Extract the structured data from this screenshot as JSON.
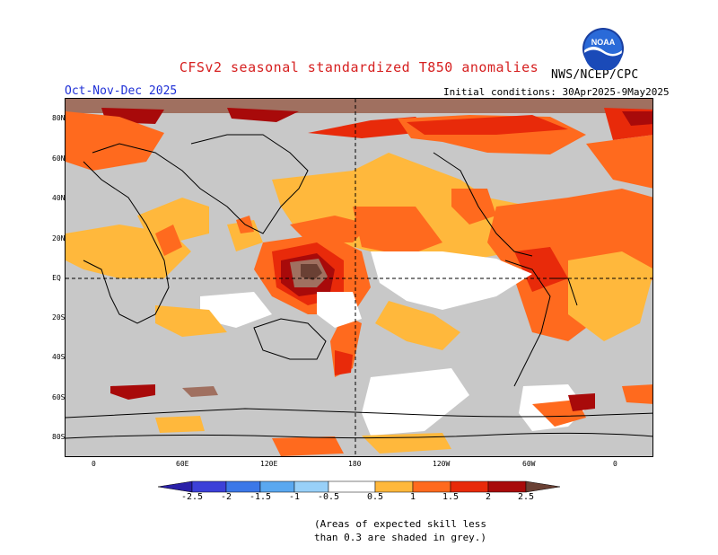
{
  "header": {
    "title": "CFSv2 seasonal standardized T850 anomalies",
    "org": "NWS/NCEP/CPC",
    "period": "Oct-Nov-Dec 2025",
    "initial_conditions": "Initial conditions: 30Apr2025-9May2025"
  },
  "logo": {
    "text": "NOAA"
  },
  "map": {
    "lat_labels": [
      "80N",
      "60N",
      "40N",
      "20N",
      "EQ",
      "20S",
      "40S",
      "60S",
      "80S"
    ],
    "lon_labels": [
      "0",
      "60E",
      "120E",
      "180",
      "120W",
      "60W",
      "0"
    ]
  },
  "colorbar": {
    "labels": [
      "-2.5",
      "-2",
      "-1.5",
      "-1",
      "-0.5",
      "0.5",
      "1",
      "1.5",
      "2",
      "2.5"
    ],
    "colors": [
      "#2a20a8",
      "#3c40d8",
      "#3c78e8",
      "#5aa8f0",
      "#98d0f8",
      "#ffffff",
      "#ffb83c",
      "#ff6a1e",
      "#e82a0a",
      "#a80a0a",
      "#a07060",
      "#6a4034"
    ]
  },
  "note": {
    "line1": "(Areas of expected skill less",
    "line2": "than 0.3 are shaded in grey.)"
  },
  "colors": {
    "grey": "#c8c8c8",
    "light_orange": "#ffb83c",
    "orange": "#ff6a1e",
    "red": "#e82a0a",
    "dark_red": "#a80a0a",
    "brown": "#a07060",
    "dark_brown": "#6a4034",
    "title": "#d62020",
    "period": "#1e2fd6"
  }
}
